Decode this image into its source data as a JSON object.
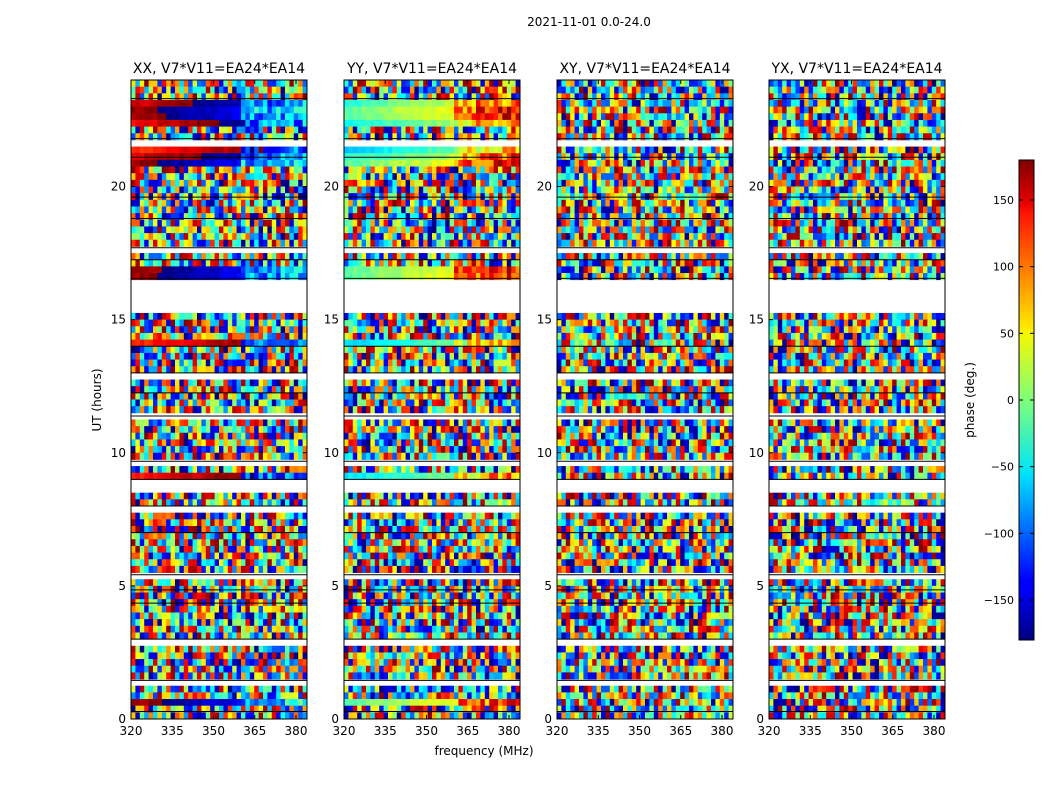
{
  "figure": {
    "suptitle": "2021-11-01 0.0-24.0"
  },
  "chart_data": {
    "type": "heatmap",
    "panels": [
      {
        "title": "XX, V7*V11=EA24*EA14",
        "polarization": "XX"
      },
      {
        "title": "YY, V7*V11=EA24*EA14",
        "polarization": "YY"
      },
      {
        "title": "XY, V7*V11=EA24*EA14",
        "polarization": "XY"
      },
      {
        "title": "YX, V7*V11=EA24*EA14",
        "polarization": "YX"
      }
    ],
    "xlabel": "frequency (MHz)",
    "ylabel": "UT (hours)",
    "xlim": [
      320,
      384
    ],
    "ylim": [
      0,
      24
    ],
    "xticks": [
      320,
      335,
      350,
      365,
      380
    ],
    "yticks": [
      0,
      5,
      10,
      15,
      20
    ],
    "colorbar": {
      "label": "phase (deg.)",
      "range": [
        -180,
        180
      ],
      "ticks": [
        150,
        100,
        50,
        0,
        -50,
        -100,
        -150
      ],
      "tick_labels": [
        "150",
        "100",
        "50",
        "0",
        "−50",
        "−100",
        "−150"
      ],
      "colormap": "jet"
    },
    "structure": {
      "flagged_bands_ut": [
        [
          0.15,
          0.28
        ],
        [
          1.3,
          1.45
        ],
        [
          2.85,
          3.0
        ],
        [
          4.25,
          4.35
        ],
        [
          4.75,
          4.85
        ],
        [
          5.3,
          5.42
        ],
        [
          6.9,
          7.0
        ],
        [
          7.85,
          8.0
        ],
        [
          8.55,
          9.0
        ],
        [
          9.6,
          9.68
        ],
        [
          11.3,
          11.38
        ],
        [
          12.15,
          12.25
        ],
        [
          12.85,
          13.0
        ],
        [
          13.9,
          14.0
        ],
        [
          15.3,
          16.55
        ],
        [
          17.15,
          17.25
        ],
        [
          17.6,
          17.7
        ],
        [
          18.7,
          18.8
        ],
        [
          19.5,
          19.6
        ],
        [
          20.9,
          21.1
        ],
        [
          21.6,
          21.8
        ],
        [
          23.2,
          23.3
        ]
      ],
      "coherent_bands_ut": [
        [
          0.45,
          0.65
        ],
        [
          9.05,
          9.25
        ],
        [
          13.95,
          14.15
        ],
        [
          14.95,
          15.1
        ],
        [
          16.55,
          17.0
        ],
        [
          20.8,
          21.6
        ],
        [
          22.2,
          23.3
        ]
      ],
      "random_phase_regions": "all other times"
    }
  }
}
